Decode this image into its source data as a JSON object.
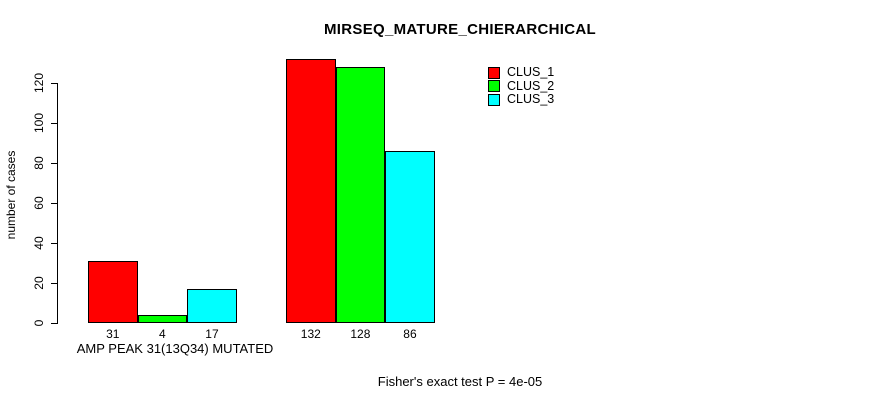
{
  "chart_data": {
    "type": "bar",
    "title": "MIRSEQ_MATURE_CHIERARCHICAL",
    "ylabel": "number of cases",
    "xlabel": "",
    "yticks": [
      0,
      20,
      40,
      60,
      80,
      100,
      120
    ],
    "ylim": [
      0,
      132
    ],
    "grid": false,
    "legend_position": "top-right",
    "categories": [
      "AMP PEAK 31(13Q34) MUTATED",
      ""
    ],
    "series": [
      {
        "name": "CLUS_1",
        "color": "#ff0000",
        "values": [
          31,
          132
        ]
      },
      {
        "name": "CLUS_2",
        "color": "#00ff00",
        "values": [
          4,
          128
        ]
      },
      {
        "name": "CLUS_3",
        "color": "#00ffff",
        "values": [
          17,
          86
        ]
      }
    ],
    "bar_value_labels": [
      [
        "31",
        "4",
        "17"
      ],
      [
        "132",
        "128",
        "86"
      ]
    ],
    "footnote": "Fisher's exact test P = 4e-05"
  }
}
